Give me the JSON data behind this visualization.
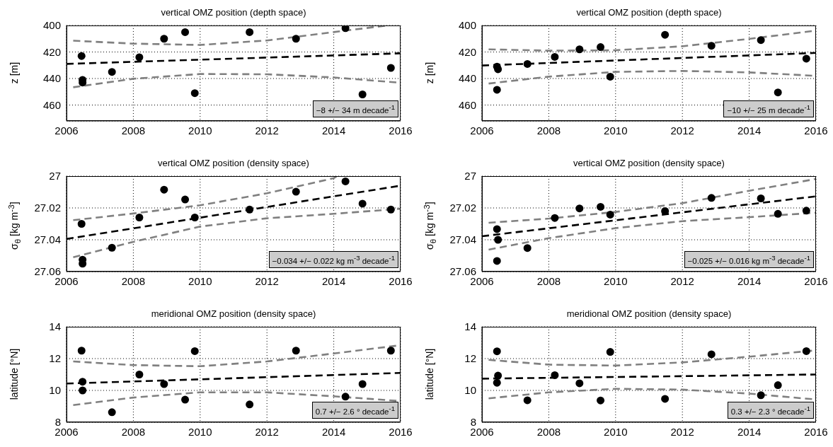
{
  "chart_data": [
    {
      "type": "scatter",
      "title": "vertical OMZ position (depth space)",
      "ylabel": "z [m]",
      "xlim": [
        2006,
        2016
      ],
      "xticks": [
        2006,
        2008,
        2010,
        2012,
        2014,
        2016
      ],
      "ylim": [
        472,
        400
      ],
      "yticks": [
        400,
        420,
        440,
        460
      ],
      "grid": true,
      "marker": "circle",
      "annotations": [
        "−8 +/− 34 m decade$^{-1}$"
      ],
      "series": [
        {
          "color": "#000000",
          "x": [
            2006.45,
            2006.48,
            2006.48,
            2007.36,
            2008.18,
            2008.92,
            2009.55,
            2009.84,
            2011.48,
            2012.87,
            2014.35,
            2014.86,
            2015.71
          ],
          "values": [
            423,
            441,
            443,
            435,
            424,
            410,
            405,
            451,
            405,
            410,
            402,
            452,
            432
          ]
        },
        {
          "type": "line",
          "marker": "none",
          "color": "#000000",
          "line_style": "dashed",
          "x": [
            2006,
            2016
          ],
          "values": [
            429,
            421
          ]
        },
        {
          "type": "line",
          "marker": "none",
          "color": "#808080",
          "line_style": "dashed",
          "x": [
            2006.2,
            2008,
            2010,
            2012,
            2014,
            2015.6
          ],
          "values": [
            411.5,
            413.7,
            414.7,
            411.3,
            405,
            400
          ]
        },
        {
          "type": "line",
          "marker": "none",
          "color": "#808080",
          "line_style": "dashed",
          "x": [
            2006.2,
            2008,
            2010,
            2012,
            2014,
            2016
          ],
          "values": [
            446.6,
            440.2,
            436.6,
            436.8,
            439.2,
            443.2
          ]
        }
      ]
    },
    {
      "type": "scatter",
      "title": "vertical OMZ position (depth space)",
      "ylabel": "z [m]",
      "xlim": [
        2006,
        2016
      ],
      "xticks": [
        2006,
        2008,
        2010,
        2012,
        2014,
        2016
      ],
      "ylim": [
        472,
        400
      ],
      "yticks": [
        400,
        420,
        440,
        460
      ],
      "grid": true,
      "marker": "circle",
      "annotations": [
        "−10 +/− 25 m decade$^{-1}$"
      ],
      "series": [
        {
          "color": "#000000",
          "x": [
            2006.45,
            2006.48,
            2006.45,
            2007.36,
            2008.18,
            2008.92,
            2009.55,
            2009.84,
            2011.48,
            2012.87,
            2014.35,
            2014.86,
            2015.71
          ],
          "values": [
            431,
            433,
            448.5,
            429,
            423.7,
            418,
            416.3,
            438.6,
            407,
            415.3,
            411,
            450.5,
            425
          ]
        },
        {
          "type": "line",
          "marker": "none",
          "color": "#000000",
          "line_style": "dashed",
          "x": [
            2006,
            2016
          ],
          "values": [
            430.2,
            420.7
          ]
        },
        {
          "type": "line",
          "marker": "none",
          "color": "#808080",
          "line_style": "dashed",
          "x": [
            2006.2,
            2008,
            2010,
            2012,
            2014,
            2016
          ],
          "values": [
            418,
            419,
            418.7,
            415.7,
            410.1,
            403.9
          ]
        },
        {
          "type": "line",
          "marker": "none",
          "color": "#808080",
          "line_style": "dashed",
          "x": [
            2006.2,
            2008,
            2010,
            2012,
            2014,
            2016
          ],
          "values": [
            443.8,
            438.6,
            435,
            434.3,
            435.4,
            438
          ]
        }
      ]
    },
    {
      "type": "scatter",
      "title": "vertical OMZ position (density space)",
      "ylabel": "σ$_{θ}$ [kg m$^{-3}$]",
      "xlim": [
        2006,
        2016
      ],
      "xticks": [
        2006,
        2008,
        2010,
        2012,
        2014,
        2016
      ],
      "ylim": [
        27.06,
        27
      ],
      "yticks": [
        27,
        27.02,
        27.04,
        27.06
      ],
      "grid": true,
      "marker": "circle",
      "annotations": [
        "−0.034 +/− 0.022 kg m$^{-3}$ decade$^{-1}$"
      ],
      "series": [
        {
          "color": "#000000",
          "x": [
            2006.45,
            2006.48,
            2006.48,
            2007.36,
            2008.18,
            2008.92,
            2009.55,
            2009.84,
            2011.48,
            2012.87,
            2014.35,
            2014.86,
            2015.71
          ],
          "values": [
            27.03,
            27.0525,
            27.055,
            27.045,
            27.026,
            27.0085,
            27.0147,
            27.026,
            27.021,
            27.0098,
            27.0033,
            27.0173,
            27.021
          ]
        },
        {
          "type": "line",
          "marker": "none",
          "color": "#000000",
          "line_style": "dashed",
          "x": [
            2006,
            2016
          ],
          "values": [
            27.0395,
            27.006
          ]
        },
        {
          "type": "line",
          "marker": "none",
          "color": "#808080",
          "line_style": "dashed",
          "x": [
            2006.2,
            2008,
            2010,
            2012,
            2014,
            2014.1
          ],
          "values": [
            27.0277,
            27.0235,
            27.0183,
            27.0108,
            27.0013,
            27.0
          ]
        },
        {
          "type": "line",
          "marker": "none",
          "color": "#808080",
          "line_style": "dashed",
          "x": [
            2006.2,
            2008,
            2010,
            2012,
            2014,
            2016
          ],
          "values": [
            27.051,
            27.0413,
            27.0317,
            27.0265,
            27.0237,
            27.0205
          ]
        }
      ]
    },
    {
      "type": "scatter",
      "title": "vertical OMZ position (density space)",
      "ylabel": "σ$_{θ}$ [kg m$^{-3}$]",
      "xlim": [
        2006,
        2016
      ],
      "xticks": [
        2006,
        2008,
        2010,
        2012,
        2014,
        2016
      ],
      "ylim": [
        27.06,
        27
      ],
      "yticks": [
        27,
        27.02,
        27.04,
        27.06
      ],
      "grid": true,
      "marker": "circle",
      "annotations": [
        "−0.025 +/− 0.016 kg m$^{-3}$ decade$^{-1}$"
      ],
      "series": [
        {
          "color": "#000000",
          "x": [
            2006.45,
            2006.48,
            2006.45,
            2007.36,
            2008.18,
            2008.92,
            2009.55,
            2009.84,
            2011.48,
            2012.87,
            2014.35,
            2014.86,
            2015.71
          ],
          "values": [
            27.0333,
            27.04,
            27.0533,
            27.0452,
            27.0263,
            27.0203,
            27.0193,
            27.0242,
            27.022,
            27.0137,
            27.014,
            27.0237,
            27.0217
          ]
        },
        {
          "type": "line",
          "marker": "none",
          "color": "#000000",
          "line_style": "dashed",
          "x": [
            2006,
            2016
          ],
          "values": [
            27.0378,
            27.0127
          ]
        },
        {
          "type": "line",
          "marker": "none",
          "color": "#808080",
          "line_style": "dashed",
          "x": [
            2006.2,
            2008,
            2010,
            2012,
            2014,
            2016
          ],
          "values": [
            27.0293,
            27.0267,
            27.0225,
            27.017,
            27.0092,
            27.0018
          ]
        },
        {
          "type": "line",
          "marker": "none",
          "color": "#808080",
          "line_style": "dashed",
          "x": [
            2006.2,
            2008,
            2010,
            2012,
            2014,
            2016
          ],
          "values": [
            27.0462,
            27.039,
            27.0327,
            27.0283,
            27.0258,
            27.023
          ]
        }
      ]
    },
    {
      "type": "scatter",
      "title": "meridional OMZ position (density space)",
      "ylabel": "latitude [°N]",
      "xlim": [
        2006,
        2016
      ],
      "xticks": [
        2006,
        2008,
        2010,
        2012,
        2014,
        2016
      ],
      "ylim": [
        8,
        14
      ],
      "yticks": [
        8,
        10,
        12,
        14
      ],
      "grid": true,
      "marker": "circle",
      "annotations": [
        "0.7 +/− 2.6 ° decade$^{-1}$"
      ],
      "series": [
        {
          "color": "#000000",
          "x": [
            2006.45,
            2006.48,
            2006.48,
            2007.36,
            2008.18,
            2008.92,
            2009.55,
            2009.84,
            2011.48,
            2012.87,
            2014.35,
            2014.86,
            2015.71
          ],
          "values": [
            12.5,
            10.55,
            10.0,
            8.63,
            11.0,
            10.4,
            9.42,
            12.47,
            9.12,
            12.5,
            9.61,
            10.4,
            12.5
          ]
        },
        {
          "type": "line",
          "marker": "none",
          "color": "#000000",
          "line_style": "dashed",
          "x": [
            2006,
            2016
          ],
          "values": [
            10.43,
            11.1
          ]
        },
        {
          "type": "line",
          "marker": "none",
          "color": "#808080",
          "line_style": "dashed",
          "x": [
            2006.2,
            2008,
            2010,
            2012,
            2014,
            2016
          ],
          "values": [
            11.82,
            11.59,
            11.52,
            11.82,
            12.32,
            12.84
          ]
        },
        {
          "type": "line",
          "marker": "none",
          "color": "#808080",
          "line_style": "dashed",
          "x": [
            2006.2,
            2008,
            2010,
            2012,
            2014,
            2016
          ],
          "values": [
            9.08,
            9.55,
            9.88,
            9.88,
            9.63,
            9.33
          ]
        }
      ]
    },
    {
      "type": "scatter",
      "title": "meridional OMZ position (density space)",
      "ylabel": "latitude [°N]",
      "xlim": [
        2006,
        2016
      ],
      "xticks": [
        2006,
        2008,
        2010,
        2012,
        2014,
        2016
      ],
      "ylim": [
        8,
        14
      ],
      "yticks": [
        8,
        10,
        12,
        14
      ],
      "grid": true,
      "marker": "circle",
      "annotations": [
        "0.3 +/− 2.3 ° decade$^{-1}$"
      ],
      "series": [
        {
          "color": "#000000",
          "x": [
            2006.45,
            2006.48,
            2006.45,
            2007.36,
            2008.18,
            2008.92,
            2009.55,
            2009.84,
            2011.48,
            2012.87,
            2014.35,
            2014.86,
            2015.71
          ],
          "values": [
            12.46,
            10.93,
            10.48,
            9.38,
            10.96,
            10.45,
            9.37,
            12.42,
            9.47,
            12.27,
            9.7,
            10.33,
            12.47
          ]
        },
        {
          "type": "line",
          "marker": "none",
          "color": "#000000",
          "line_style": "dashed",
          "x": [
            2006,
            2016
          ],
          "values": [
            10.74,
            11.0
          ]
        },
        {
          "type": "line",
          "marker": "none",
          "color": "#808080",
          "line_style": "dashed",
          "x": [
            2006.2,
            2008,
            2010,
            2012,
            2014,
            2016
          ],
          "values": [
            11.92,
            11.62,
            11.56,
            11.76,
            12.12,
            12.52
          ]
        },
        {
          "type": "line",
          "marker": "none",
          "color": "#808080",
          "line_style": "dashed",
          "x": [
            2006.2,
            2008,
            2010,
            2012,
            2014,
            2016
          ],
          "values": [
            9.5,
            9.88,
            10.1,
            10.05,
            9.8,
            9.43
          ]
        }
      ]
    }
  ]
}
